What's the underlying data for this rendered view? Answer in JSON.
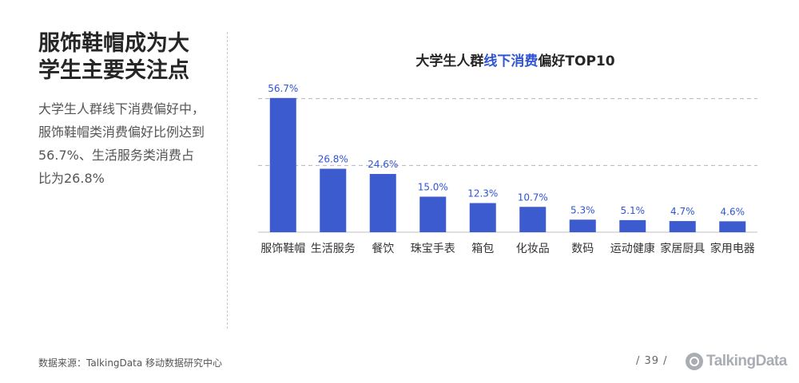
{
  "slide": {
    "headline": "服饰鞋帽成为大学生主要关注点",
    "summary": "大学生人群线下消费偏好中，服饰鞋帽类消费偏好比例达到56.7%、生活服务类消费占比为26.8%",
    "source": "数据来源：TalkingData 移动数据研究中心",
    "page_number": "/ 39 /",
    "logo_text": "TalkingData"
  },
  "chart_data": {
    "type": "bar",
    "title_prefix": "大学生人群",
    "title_highlight": "线下消费",
    "title_suffix": "偏好TOP10",
    "categories": [
      "服饰鞋帽",
      "生活服务",
      "餐饮",
      "珠宝手表",
      "箱包",
      "化妆品",
      "数码",
      "运动健康",
      "家居厨具",
      "家用电器"
    ],
    "values": [
      56.7,
      26.8,
      24.6,
      15.0,
      12.3,
      10.7,
      5.3,
      5.1,
      4.7,
      4.6
    ],
    "value_labels": [
      "56.7%",
      "26.8%",
      "24.6%",
      "15.0%",
      "12.3%",
      "10.7%",
      "5.3%",
      "5.1%",
      "4.7%",
      "4.6%"
    ],
    "unit": "%",
    "ylim": [
      0,
      60
    ],
    "reference_lines": [
      28.2,
      56.4
    ],
    "bar_color": "#3b5bcf",
    "label_color": "#2f55d4",
    "highlight_color": "#2f55d4"
  }
}
